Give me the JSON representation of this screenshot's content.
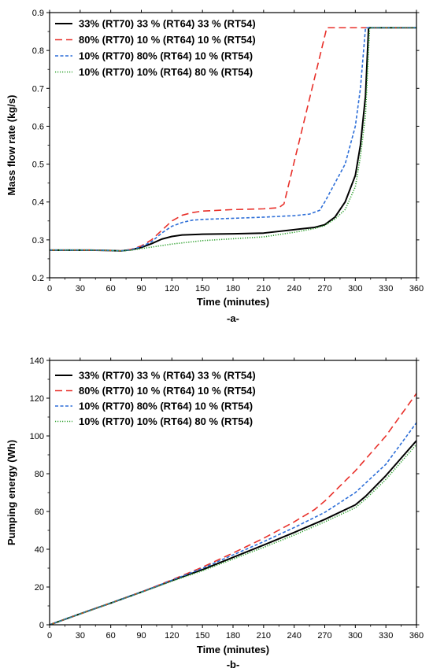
{
  "chart_data": [
    {
      "type": "line",
      "panel_label": "-a-",
      "xlabel": "Time (minutes)",
      "ylabel": "Mass flow rate (kg/s)",
      "xlim": [
        0,
        360
      ],
      "ylim": [
        0.2,
        0.9
      ],
      "xticks": [
        0,
        30,
        60,
        90,
        120,
        150,
        180,
        210,
        240,
        270,
        300,
        330,
        360
      ],
      "yticks": [
        0.2,
        0.3,
        0.4,
        0.5,
        0.6,
        0.7,
        0.8,
        0.9
      ],
      "ytick_labels": [
        "0.2",
        "0.3",
        "0.4",
        "0.5",
        "0.6",
        "0.7",
        "0.8",
        "0.9"
      ],
      "legend_position": "top-left",
      "series": [
        {
          "name": "33% (RT70) 33 % (RT64) 33 % (RT54)",
          "color": "#000000",
          "dash": "solid",
          "x": [
            0,
            40,
            60,
            70,
            80,
            90,
            100,
            110,
            120,
            130,
            150,
            180,
            210,
            240,
            260,
            270,
            280,
            290,
            300,
            305,
            310,
            313,
            360
          ],
          "y": [
            0.273,
            0.273,
            0.272,
            0.271,
            0.274,
            0.28,
            0.29,
            0.302,
            0.309,
            0.313,
            0.315,
            0.316,
            0.318,
            0.327,
            0.333,
            0.34,
            0.36,
            0.4,
            0.47,
            0.55,
            0.68,
            0.86,
            0.86
          ]
        },
        {
          "name": "80% (RT70) 10 % (RT64) 10 % (RT54)",
          "color": "#e8302a",
          "dash": "long",
          "x": [
            0,
            40,
            60,
            70,
            80,
            90,
            100,
            110,
            120,
            130,
            140,
            150,
            180,
            210,
            225,
            230,
            272,
            310,
            360
          ],
          "y": [
            0.273,
            0.273,
            0.272,
            0.271,
            0.275,
            0.284,
            0.3,
            0.325,
            0.35,
            0.365,
            0.372,
            0.376,
            0.38,
            0.382,
            0.385,
            0.395,
            0.86,
            0.86,
            0.86
          ]
        },
        {
          "name": "10% (RT70) 80% (RT64) 10 % (RT54)",
          "color": "#2e6fd8",
          "dash": "short",
          "x": [
            0,
            40,
            60,
            70,
            80,
            90,
            100,
            110,
            120,
            130,
            140,
            150,
            180,
            210,
            240,
            255,
            265,
            270,
            280,
            290,
            300,
            305,
            310,
            360
          ],
          "y": [
            0.273,
            0.273,
            0.272,
            0.271,
            0.274,
            0.282,
            0.295,
            0.318,
            0.336,
            0.346,
            0.352,
            0.354,
            0.357,
            0.36,
            0.364,
            0.368,
            0.378,
            0.4,
            0.45,
            0.5,
            0.6,
            0.7,
            0.86,
            0.86
          ]
        },
        {
          "name": "10% (RT70) 10% (RT64) 80 % (RT54)",
          "color": "#2ca02c",
          "dash": "dotted",
          "x": [
            0,
            40,
            60,
            70,
            80,
            90,
            100,
            110,
            120,
            150,
            180,
            210,
            240,
            260,
            270,
            280,
            290,
            300,
            305,
            310,
            314,
            360
          ],
          "y": [
            0.273,
            0.273,
            0.272,
            0.271,
            0.273,
            0.277,
            0.281,
            0.285,
            0.289,
            0.298,
            0.303,
            0.308,
            0.32,
            0.33,
            0.338,
            0.355,
            0.38,
            0.44,
            0.52,
            0.63,
            0.86,
            0.86
          ]
        }
      ]
    },
    {
      "type": "line",
      "panel_label": "-b-",
      "xlabel": "Time (minutes)",
      "ylabel": "Pumping energy (Wh)",
      "xlim": [
        0,
        360
      ],
      "ylim": [
        0,
        140
      ],
      "xticks": [
        0,
        30,
        60,
        90,
        120,
        150,
        180,
        210,
        240,
        270,
        300,
        330,
        360
      ],
      "yticks": [
        0,
        20,
        40,
        60,
        80,
        100,
        120,
        140
      ],
      "ytick_labels": [
        "0",
        "20",
        "40",
        "60",
        "80",
        "100",
        "120",
        "140"
      ],
      "legend_position": "top-left",
      "series": [
        {
          "name": "33% (RT70) 33 % (RT64) 33 % (RT54)",
          "color": "#000000",
          "dash": "solid",
          "x": [
            0,
            30,
            60,
            90,
            120,
            150,
            180,
            210,
            240,
            270,
            300,
            310,
            330,
            360
          ],
          "y": [
            0,
            5.8,
            11.5,
            17.3,
            23.4,
            29.2,
            35.7,
            42.2,
            48.9,
            55.8,
            63.5,
            68,
            79,
            97.5
          ]
        },
        {
          "name": "80% (RT70) 10 % (RT64) 10 % (RT54)",
          "color": "#e8302a",
          "dash": "long",
          "x": [
            0,
            30,
            60,
            90,
            120,
            150,
            180,
            210,
            240,
            260,
            270,
            300,
            330,
            360
          ],
          "y": [
            0,
            5.8,
            11.5,
            17.3,
            23.8,
            30.5,
            38,
            45.8,
            54.5,
            61,
            65.5,
            81.5,
            100,
            122.5
          ]
        },
        {
          "name": "10% (RT70) 80% (RT64) 10 % (RT54)",
          "color": "#2e6fd8",
          "dash": "short",
          "x": [
            0,
            30,
            60,
            90,
            120,
            150,
            180,
            210,
            240,
            270,
            300,
            330,
            360
          ],
          "y": [
            0,
            5.8,
            11.5,
            17.3,
            23.6,
            29.9,
            37,
            44,
            51.5,
            59.5,
            70,
            85,
            107
          ]
        },
        {
          "name": "10% (RT70) 10% (RT64) 80 % (RT54)",
          "color": "#2ca02c",
          "dash": "dotted",
          "x": [
            0,
            30,
            60,
            90,
            120,
            150,
            180,
            210,
            240,
            270,
            300,
            310,
            330,
            360
          ],
          "y": [
            0,
            5.8,
            11.5,
            17.2,
            23.1,
            28.6,
            34.8,
            41,
            47.5,
            54.5,
            62,
            66.5,
            77,
            95.5
          ]
        }
      ]
    }
  ]
}
